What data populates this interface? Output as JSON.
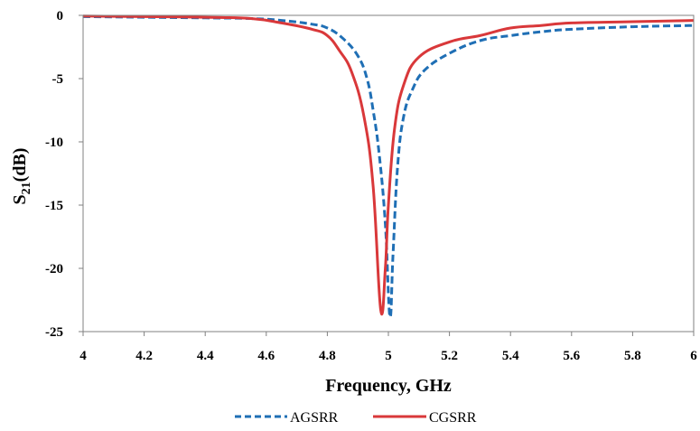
{
  "chart_data": {
    "type": "line",
    "xlabel": "Frequency, GHz",
    "ylabel": {
      "main": "S",
      "sub": "21",
      "rest": "(dB)"
    },
    "xlim": [
      4,
      6
    ],
    "ylim": [
      -25,
      0
    ],
    "xticks": [
      "4",
      "4.2",
      "4.4",
      "4.6",
      "4.8",
      "5",
      "5.2",
      "5.4",
      "5.6",
      "5.8",
      "6"
    ],
    "yticks": [
      "0",
      "-5",
      "-10",
      "-15",
      "-20",
      "-25"
    ],
    "grid": false,
    "legend_position": "bottom",
    "series": [
      {
        "name": "AGSRR",
        "color": "#1f6fb5",
        "style": "dashed",
        "points": [
          [
            4.0,
            -0.1
          ],
          [
            4.2,
            -0.15
          ],
          [
            4.4,
            -0.2
          ],
          [
            4.55,
            -0.25
          ],
          [
            4.65,
            -0.4
          ],
          [
            4.75,
            -0.7
          ],
          [
            4.8,
            -1.0
          ],
          [
            4.85,
            -1.8
          ],
          [
            4.9,
            -3.2
          ],
          [
            4.93,
            -5.0
          ],
          [
            4.95,
            -7.5
          ],
          [
            4.97,
            -11.0
          ],
          [
            4.99,
            -16.5
          ],
          [
            5.005,
            -23.8
          ],
          [
            5.015,
            -19.0
          ],
          [
            5.03,
            -12.0
          ],
          [
            5.05,
            -8.0
          ],
          [
            5.08,
            -5.8
          ],
          [
            5.12,
            -4.3
          ],
          [
            5.2,
            -3.0
          ],
          [
            5.3,
            -2.0
          ],
          [
            5.4,
            -1.6
          ],
          [
            5.5,
            -1.3
          ],
          [
            5.6,
            -1.1
          ],
          [
            5.8,
            -0.9
          ],
          [
            6.0,
            -0.8
          ]
        ]
      },
      {
        "name": "CGSRR",
        "color": "#d9383a",
        "style": "solid",
        "points": [
          [
            4.0,
            -0.05
          ],
          [
            4.2,
            -0.1
          ],
          [
            4.4,
            -0.15
          ],
          [
            4.55,
            -0.25
          ],
          [
            4.65,
            -0.6
          ],
          [
            4.75,
            -1.1
          ],
          [
            4.8,
            -1.6
          ],
          [
            4.84,
            -2.8
          ],
          [
            4.88,
            -4.5
          ],
          [
            4.92,
            -8.0
          ],
          [
            4.95,
            -13.5
          ],
          [
            4.975,
            -23.3
          ],
          [
            4.99,
            -20.0
          ],
          [
            5.0,
            -15.0
          ],
          [
            5.02,
            -9.0
          ],
          [
            5.05,
            -5.5
          ],
          [
            5.1,
            -3.3
          ],
          [
            5.2,
            -2.1
          ],
          [
            5.3,
            -1.6
          ],
          [
            5.4,
            -1.0
          ],
          [
            5.5,
            -0.8
          ],
          [
            5.6,
            -0.6
          ],
          [
            5.8,
            -0.5
          ],
          [
            6.0,
            -0.4
          ]
        ]
      }
    ]
  }
}
